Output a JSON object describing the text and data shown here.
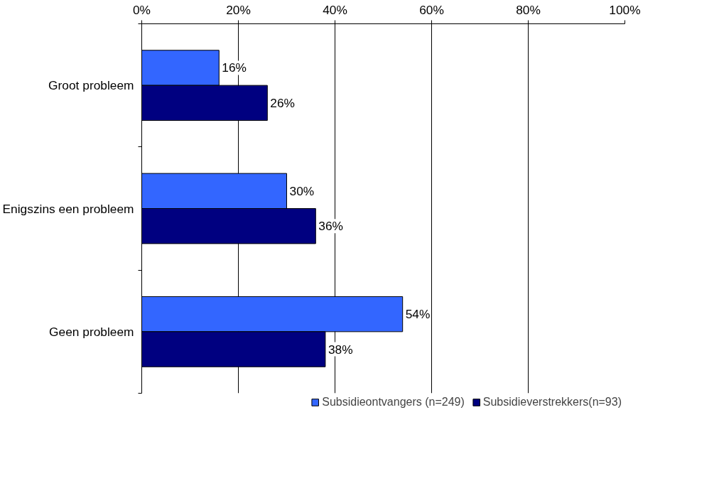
{
  "chart_data": {
    "type": "bar",
    "orientation": "horizontal",
    "categories": [
      "Groot probleem",
      "Enigszins een probleem",
      "Geen probleem"
    ],
    "series": [
      {
        "name": "Subsidieontvangers (n=249)",
        "color": "#3366ff",
        "values": [
          16,
          30,
          54
        ],
        "value_labels": [
          "16%",
          "30%",
          "54%"
        ]
      },
      {
        "name": "Subsidieverstrekkers(n=93)",
        "color": "#000080",
        "values": [
          26,
          36,
          38
        ],
        "value_labels": [
          "26%",
          "36%",
          "38%"
        ]
      }
    ],
    "xlim": [
      0,
      100
    ],
    "xticks": [
      {
        "value": 0,
        "label": "0%"
      },
      {
        "value": 20,
        "label": "20%"
      },
      {
        "value": 40,
        "label": "40%"
      },
      {
        "value": 60,
        "label": "60%"
      },
      {
        "value": 80,
        "label": "80%"
      },
      {
        "value": 100,
        "label": "100%"
      }
    ],
    "grid": "x",
    "legend": "bottom"
  }
}
